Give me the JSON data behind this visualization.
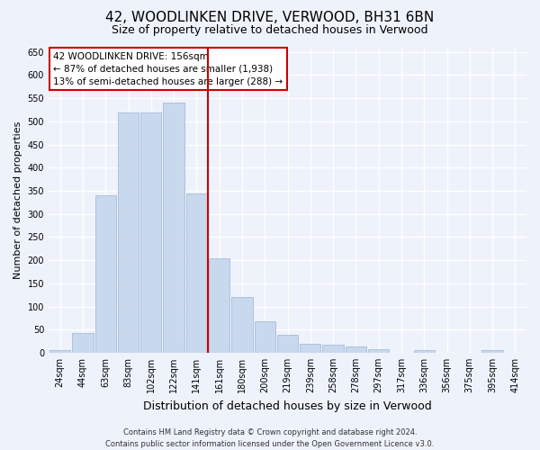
{
  "title": "42, WOODLINKEN DRIVE, VERWOOD, BH31 6BN",
  "subtitle": "Size of property relative to detached houses in Verwood",
  "xlabel": "Distribution of detached houses by size in Verwood",
  "ylabel": "Number of detached properties",
  "bar_labels": [
    "24sqm",
    "44sqm",
    "63sqm",
    "83sqm",
    "102sqm",
    "122sqm",
    "141sqm",
    "161sqm",
    "180sqm",
    "200sqm",
    "219sqm",
    "239sqm",
    "258sqm",
    "278sqm",
    "297sqm",
    "317sqm",
    "336sqm",
    "356sqm",
    "375sqm",
    "395sqm",
    "414sqm"
  ],
  "bar_heights": [
    5,
    42,
    340,
    520,
    520,
    540,
    345,
    205,
    120,
    68,
    38,
    20,
    18,
    13,
    8,
    0,
    5,
    0,
    0,
    5,
    0
  ],
  "bar_color": "#c8d8ed",
  "bar_edgecolor": "#a8bdd8",
  "vline_x": 7.0,
  "vline_color": "#cc0000",
  "ylim": [
    0,
    660
  ],
  "yticks": [
    0,
    50,
    100,
    150,
    200,
    250,
    300,
    350,
    400,
    450,
    500,
    550,
    600,
    650
  ],
  "annotation_title": "42 WOODLINKEN DRIVE: 156sqm",
  "annotation_line1": "← 87% of detached houses are smaller (1,938)",
  "annotation_line2": "13% of semi-detached houses are larger (288) →",
  "annotation_box_color": "#ffffff",
  "annotation_box_edgecolor": "#cc0000",
  "footer1": "Contains HM Land Registry data © Crown copyright and database right 2024.",
  "footer2": "Contains public sector information licensed under the Open Government Licence v3.0.",
  "background_color": "#eef2fb",
  "grid_color": "#ffffff",
  "title_fontsize": 11,
  "subtitle_fontsize": 9,
  "ylabel_fontsize": 8,
  "xlabel_fontsize": 9,
  "tick_fontsize": 7,
  "footer_fontsize": 6,
  "annotation_fontsize": 7.5
}
